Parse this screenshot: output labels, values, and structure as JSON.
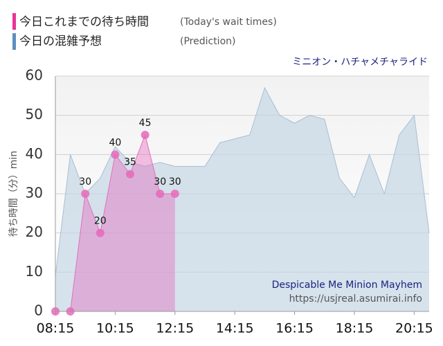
{
  "chart_data": {
    "type": "area",
    "title": "ミニオン・ハチャメチャライド",
    "y_label": "待ち時間（分）min",
    "annotations": [
      "Despicable Me Minion Mayhem",
      "https://usjreal.asumirai.info"
    ],
    "categories": [
      "08:15",
      null,
      null,
      null,
      "10:15",
      null,
      null,
      null,
      "12:15",
      null,
      null,
      null,
      "14:15",
      null,
      null,
      null,
      "16:15",
      null,
      null,
      null,
      "18:15",
      null,
      null,
      null,
      "20:15",
      null
    ],
    "series": [
      {
        "name": "今日の混雑予想",
        "name_en": "(Prediction)",
        "color": "#5b8fbf",
        "values": [
          9,
          40,
          30,
          34,
          42,
          38,
          37,
          38,
          37,
          37,
          37,
          43,
          44,
          45,
          57,
          50,
          48,
          50,
          49,
          34,
          29,
          40,
          30,
          45,
          50,
          20
        ]
      },
      {
        "name": "今日これまでの待ち時間",
        "name_en": "(Today's wait times)",
        "color": "#e8339a",
        "values": [
          0,
          0,
          30,
          20,
          40,
          35,
          45,
          30,
          30,
          null,
          null,
          null,
          null,
          null,
          null,
          null,
          null,
          null,
          null,
          null,
          null,
          null,
          null,
          null,
          null,
          null
        ],
        "value_labels": [
          null,
          null,
          "30",
          "20",
          "40",
          "35",
          "45",
          "30",
          "30",
          null,
          null,
          null,
          null,
          null,
          null,
          null,
          null,
          null,
          null,
          null,
          null,
          null,
          null,
          null,
          null,
          null
        ]
      }
    ],
    "ylim": [
      0,
      60
    ],
    "yticks": [
      0,
      10,
      20,
      30,
      40,
      50,
      60
    ],
    "grid": true
  }
}
